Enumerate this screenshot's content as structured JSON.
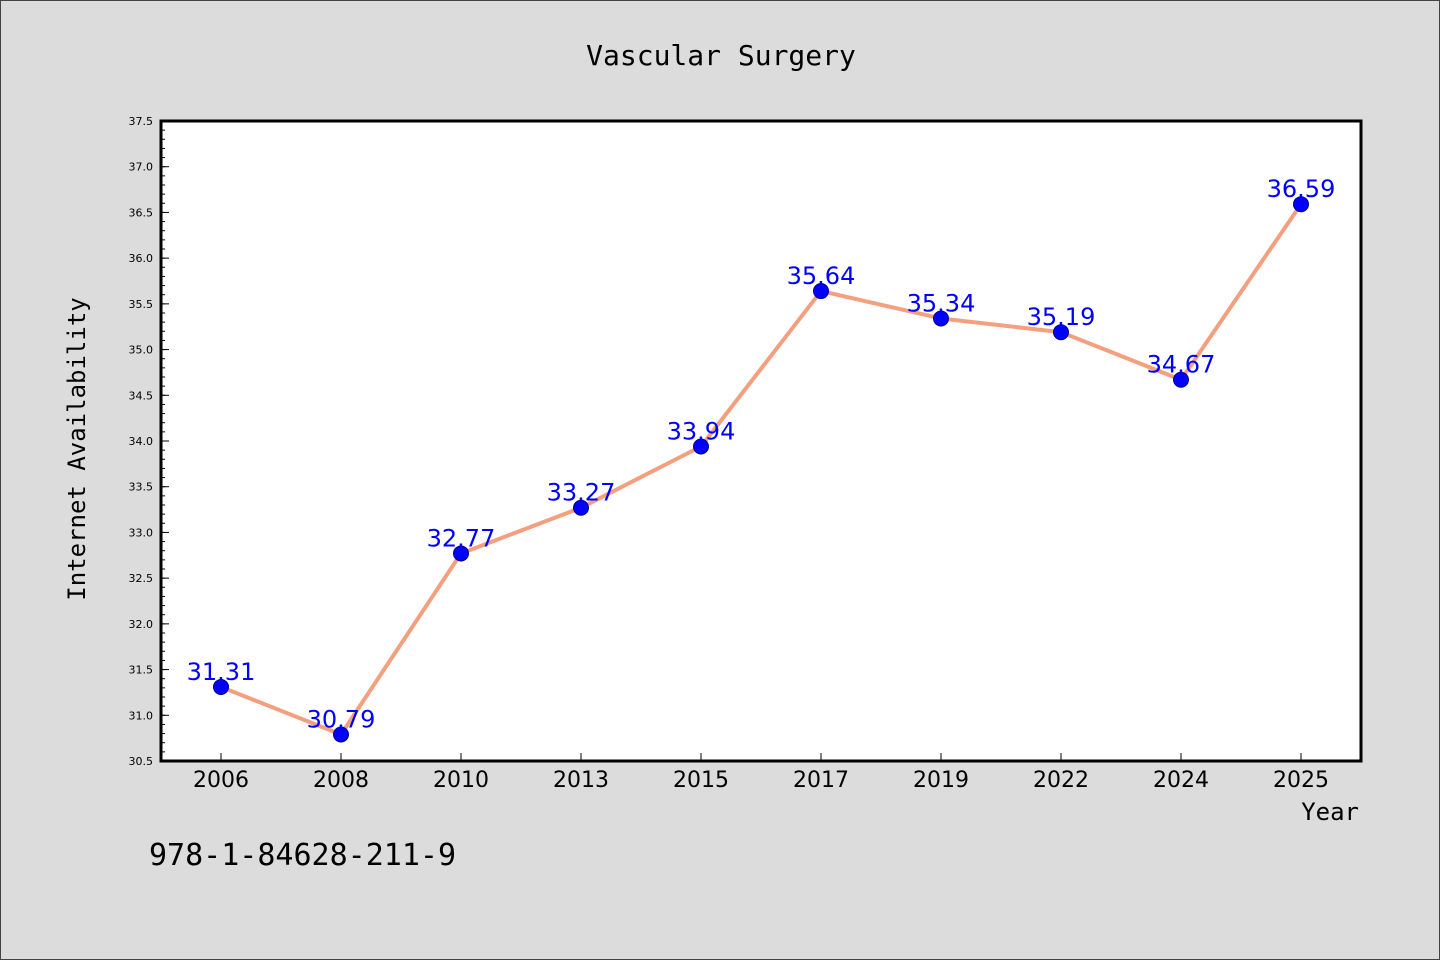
{
  "chart_data": {
    "type": "line",
    "title": "Vascular Surgery",
    "xlabel": "Year",
    "ylabel": "Internet Availability",
    "categories": [
      "2006",
      "2008",
      "2010",
      "2013",
      "2015",
      "2017",
      "2019",
      "2022",
      "2024",
      "2025"
    ],
    "series": [
      {
        "values": [
          31.31,
          30.79,
          32.77,
          33.27,
          33.94,
          35.64,
          35.34,
          35.19,
          34.67,
          36.59
        ]
      }
    ],
    "data_labels": [
      "31.31",
      "30.79",
      "32.77",
      "33.27",
      "33.94",
      "35.64",
      "35.34",
      "35.19",
      "34.67",
      "36.59"
    ],
    "yticks": [
      "30.5",
      "31.0",
      "31.5",
      "32.0",
      "32.5",
      "33.0",
      "33.5",
      "34.0",
      "34.5",
      "35.0",
      "35.5",
      "36.0",
      "36.5",
      "37.0",
      "37.5"
    ],
    "ylim": [
      30.5,
      37.5
    ],
    "grid": false,
    "legend": "none",
    "colors": {
      "line": "#f4a07f",
      "marker": "#0000ff",
      "label": "#0000ff",
      "plot_background": "#ffffff",
      "page_background": "#dcdcdc"
    }
  },
  "footer": {
    "isbn": "978-1-84628-211-9"
  }
}
